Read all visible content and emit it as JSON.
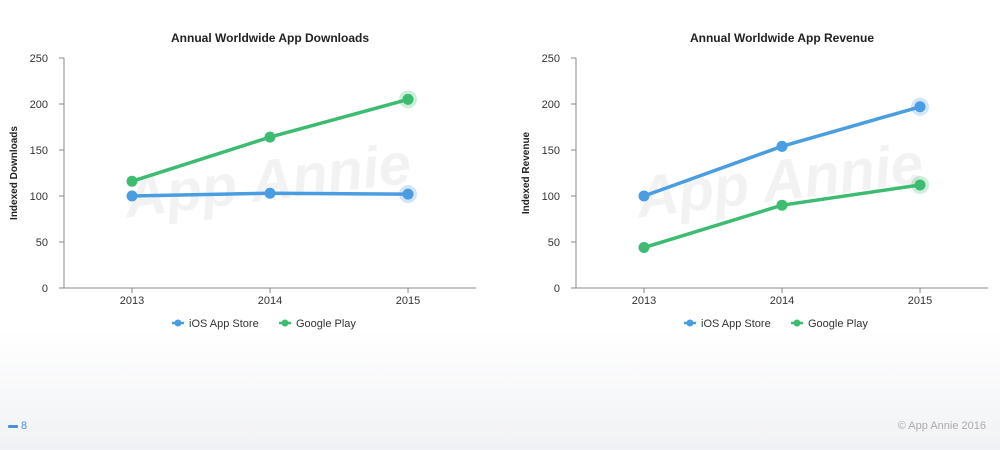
{
  "colors": {
    "ios": "#4a9de0",
    "google": "#3dbb71",
    "axis": "#888888"
  },
  "chart_data": [
    {
      "type": "line",
      "title": "Annual Worldwide App Downloads",
      "xlabel": "",
      "ylabel": "Indexed Downloads",
      "categories": [
        "2013",
        "2014",
        "2015"
      ],
      "ylim": [
        0,
        250
      ],
      "yticks": [
        0,
        50,
        100,
        150,
        200,
        250
      ],
      "grid": false,
      "legend": "bottom",
      "watermark": "App Annie",
      "series": [
        {
          "name": "iOS App Store",
          "values": [
            100,
            103,
            102
          ]
        },
        {
          "name": "Google Play",
          "values": [
            116,
            164,
            205
          ]
        }
      ]
    },
    {
      "type": "line",
      "title": "Annual Worldwide App Revenue",
      "xlabel": "",
      "ylabel": "Indexed Revenue",
      "categories": [
        "2013",
        "2014",
        "2015"
      ],
      "ylim": [
        0,
        250
      ],
      "yticks": [
        0,
        50,
        100,
        150,
        200,
        250
      ],
      "grid": false,
      "legend": "bottom",
      "watermark": "App Annie",
      "series": [
        {
          "name": "iOS App Store",
          "values": [
            100,
            154,
            197
          ]
        },
        {
          "name": "Google Play",
          "values": [
            44,
            90,
            112
          ]
        }
      ]
    }
  ],
  "footer": {
    "page_number": "8",
    "copyright": "© App Annie 2016"
  }
}
